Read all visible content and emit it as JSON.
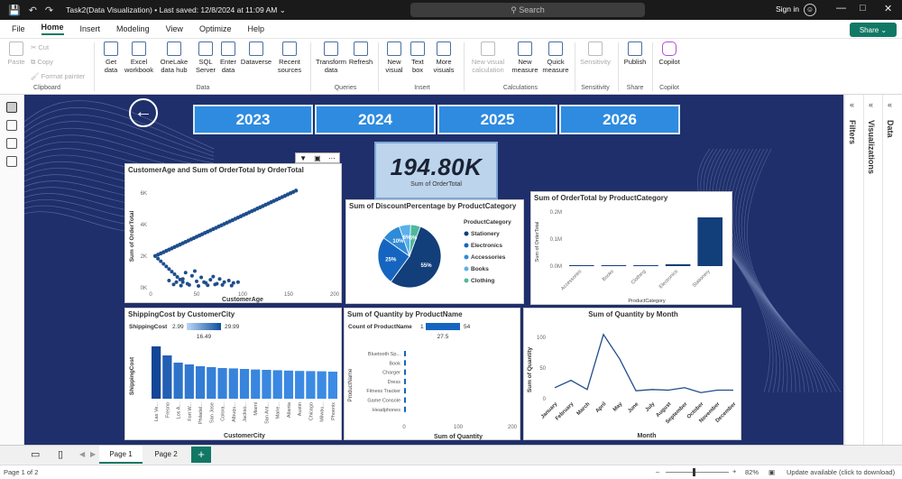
{
  "app": {
    "title": "Task2(Data Visualization)",
    "saved": "• Last saved: 12/8/2024 at 11:09 AM",
    "search_placeholder": "Search",
    "signin": "Sign in"
  },
  "menu": [
    "File",
    "Home",
    "Insert",
    "Modeling",
    "View",
    "Optimize",
    "Help"
  ],
  "share": "Share",
  "ribbon": {
    "clipboard": {
      "paste": "Paste",
      "cut": "Cut",
      "copy": "Copy",
      "format_painter": "Format painter",
      "group": "Clipboard"
    },
    "data": {
      "get_data": "Get\ndata",
      "excel": "Excel\nworkbook",
      "onelake": "OneLake\ndata hub",
      "sql": "SQL\nServer",
      "enter": "Enter\ndata",
      "dataverse": "Dataverse",
      "recent": "Recent\nsources",
      "group": "Data"
    },
    "queries": {
      "transform": "Transform\ndata",
      "refresh": "Refresh",
      "group": "Queries"
    },
    "insert": {
      "new_visual": "New\nvisual",
      "text_box": "Text\nbox",
      "more_visuals": "More\nvisuals",
      "group": "Insert"
    },
    "calculations": {
      "new_visual_calc": "New visual\ncalculation",
      "new_measure": "New\nmeasure",
      "quick_measure": "Quick\nmeasure",
      "group": "Calculations"
    },
    "sensitivity": {
      "label": "Sensitivity",
      "group": "Sensitivity"
    },
    "share": {
      "publish": "Publish",
      "group": "Share"
    },
    "copilot": {
      "label": "Copilot",
      "group": "Copilot"
    }
  },
  "report": {
    "years": [
      "2023",
      "2024",
      "2025",
      "2026"
    ],
    "kpi": {
      "value": "194.80K",
      "label": "Sum of OrderTotal"
    }
  },
  "scatter": {
    "title": "CustomerAge and Sum of OrderTotal by OrderTotal",
    "xlabel": "CustomerAge",
    "ylabel": "Sum of OrderTotal",
    "yticks": [
      "6K",
      "4K",
      "2K",
      "0K"
    ],
    "xticks": [
      "0",
      "50",
      "100",
      "150",
      "200"
    ],
    "color": "#1f4e8c"
  },
  "pie": {
    "title": "Sum of DiscountPercentage by ProductCategory",
    "legend_title": "ProductCategory",
    "slices": [
      {
        "name": "Stationery",
        "value": 55,
        "label": "55%",
        "color": "#123e7a"
      },
      {
        "name": "Electronics",
        "value": 25,
        "label": "25%",
        "color": "#1565c0"
      },
      {
        "name": "Accessories",
        "value": 10,
        "label": "10%",
        "color": "#2f8ad8"
      },
      {
        "name": "Books",
        "value": 6,
        "label": "6%",
        "color": "#5ab0ea"
      },
      {
        "name": "Clothing",
        "value": 5,
        "label": "5%",
        "color": "#4fb89c"
      }
    ]
  },
  "bar_cat": {
    "title": "Sum of OrderTotal by ProductCategory",
    "xlabel": "ProductCategory",
    "ylabel": "Sum of OrderTotal",
    "yticks": [
      "0.2M",
      "0.1M",
      "0.0M"
    ],
    "categories": [
      "Accessories",
      "Books",
      "Clothing",
      "Electronics",
      "Stationery"
    ],
    "values": [
      0.002,
      0.002,
      0.003,
      0.007,
      0.18
    ],
    "color": "#123e7a"
  },
  "shipping": {
    "title": "ShippingCost by CustomerCity",
    "ylabel": "ShippingCost",
    "xlabel": "CustomerCity",
    "legend_label": "ShippingCost",
    "legend_min": "2.99",
    "legend_max": "29.99",
    "legend_mid": "16.49",
    "categories": [
      "Las Ve...",
      "Fresno",
      "Los A...",
      "Fort W...",
      "Philadel...",
      "San Jose",
      "Colora...",
      "Albuqu...",
      "Jackso...",
      "Miami",
      "San Ant...",
      "Marie...",
      "Atlanta",
      "Austin",
      "Chicago",
      "Milwau...",
      "Phoenix"
    ],
    "values": [
      29,
      24,
      20,
      19,
      18,
      17.5,
      17,
      16.8,
      16.5,
      16.2,
      16,
      15.8,
      15.6,
      15.4,
      15.3,
      15.2,
      15
    ]
  },
  "quantity_product": {
    "title": "Sum of Quantity by ProductName",
    "legend_label": "Count of ProductName",
    "legend_min": "1",
    "legend_max": "54",
    "legend_mid": "27.5",
    "ylabel": "ProductName",
    "xlabel": "Sum of Quantity",
    "xticks": [
      "0",
      "100",
      "200"
    ],
    "categories": [
      "Bluetooth Sp...",
      "Book",
      "Charger",
      "Dress",
      "Fitness Tracker",
      "Game Console",
      "Headphones"
    ]
  },
  "monthly": {
    "title": "Sum of Quantity by Month",
    "ylabel": "Sum of Quantity",
    "xlabel": "Month",
    "yticks": [
      "100",
      "50",
      "0"
    ],
    "categories": [
      "January",
      "February",
      "March",
      "April",
      "May",
      "June",
      "July",
      "August",
      "September",
      "October",
      "November",
      "December"
    ],
    "values": [
      18,
      30,
      15,
      105,
      65,
      13,
      15,
      14,
      18,
      10,
      14,
      14
    ],
    "color": "#1f4e8c"
  },
  "pages": [
    "Page 1",
    "Page 2"
  ],
  "status": {
    "page": "Page 1 of 2",
    "zoom": "82%",
    "update": "Update available (click to download)"
  },
  "panes": {
    "filters": "Filters",
    "visualizations": "Visualizations",
    "data": "Data"
  }
}
